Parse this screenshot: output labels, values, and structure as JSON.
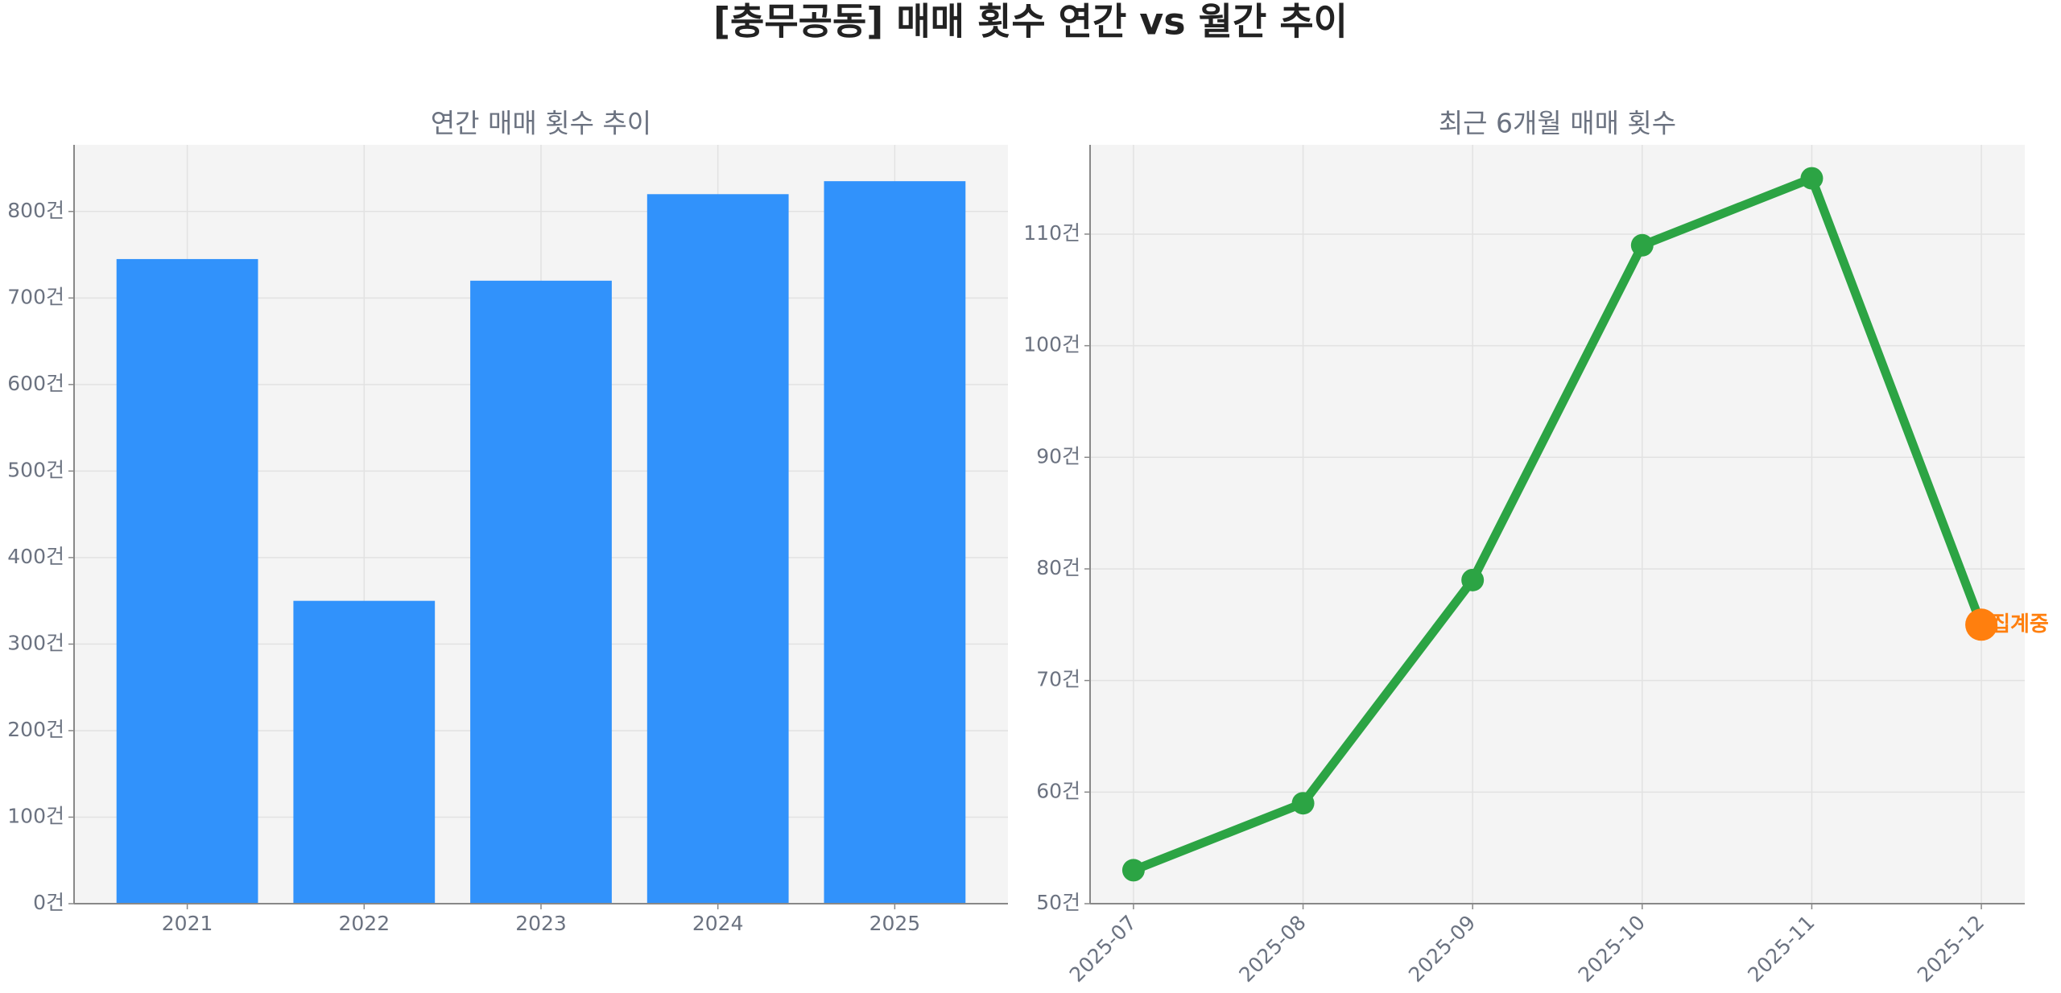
{
  "title": "[충무공동] 매매 횟수 연간 vs 월간 추이",
  "chart_data": [
    {
      "type": "bar",
      "title": "연간 매매 횟수 추이",
      "categories": [
        "2021",
        "2022",
        "2023",
        "2024",
        "2025"
      ],
      "values": [
        745,
        350,
        720,
        820,
        835
      ],
      "color": "#3192fb",
      "ylim": [
        0,
        877
      ],
      "yticks": [
        {
          "value": 0,
          "label": "0건"
        },
        {
          "value": 100,
          "label": "100건"
        },
        {
          "value": 200,
          "label": "200건"
        },
        {
          "value": 300,
          "label": "300건"
        },
        {
          "value": 400,
          "label": "400건"
        },
        {
          "value": 500,
          "label": "500건"
        },
        {
          "value": 600,
          "label": "600건"
        },
        {
          "value": 700,
          "label": "700건"
        },
        {
          "value": 800,
          "label": "800건"
        }
      ],
      "grid": true
    },
    {
      "type": "line",
      "title": "최근 6개월 매매 횟수",
      "categories": [
        "2025-07",
        "2025-08",
        "2025-09",
        "2025-10",
        "2025-11",
        "2025-12"
      ],
      "values": [
        53,
        59,
        79,
        109,
        115,
        75
      ],
      "color": "#2ca444",
      "point_colors": [
        "#2ca444",
        "#2ca444",
        "#2ca444",
        "#2ca444",
        "#2ca444",
        "#ff7f0e"
      ],
      "annotation": "집계중",
      "annotation_color": "#ff7f0e",
      "ylim": [
        50,
        118
      ],
      "yticks": [
        {
          "value": 50,
          "label": "50건"
        },
        {
          "value": 60,
          "label": "60건"
        },
        {
          "value": 70,
          "label": "70건"
        },
        {
          "value": 80,
          "label": "80건"
        },
        {
          "value": 90,
          "label": "90건"
        },
        {
          "value": 100,
          "label": "100건"
        },
        {
          "value": 110,
          "label": "110건"
        }
      ],
      "grid": true
    }
  ]
}
